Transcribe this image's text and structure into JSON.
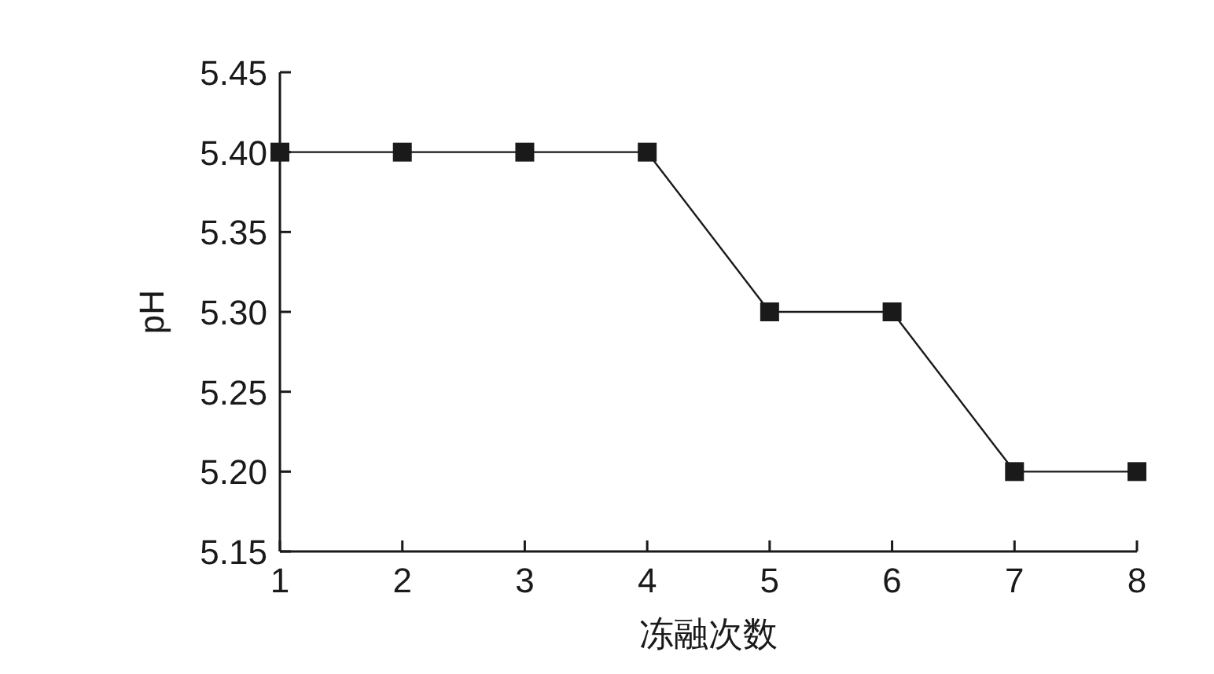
{
  "chart_data": {
    "type": "line",
    "xlabel": "冻融次数",
    "ylabel": "pH",
    "x": [
      1,
      2,
      3,
      4,
      5,
      6,
      7,
      8
    ],
    "series": [
      {
        "color": "#1a1a1a",
        "values": [
          5.4,
          5.4,
          5.4,
          5.4,
          5.3,
          5.3,
          5.2,
          5.2
        ]
      }
    ],
    "xlim": [
      1,
      8
    ],
    "xticks": [
      1,
      2,
      3,
      4,
      5,
      6,
      7,
      8
    ],
    "ylim": [
      5.15,
      5.45
    ],
    "yticks": [
      {
        "value": 5.15,
        "label": "5.15"
      },
      {
        "value": 5.2,
        "label": "5.20"
      },
      {
        "value": 5.25,
        "label": "5.25"
      },
      {
        "value": 5.3,
        "label": "5.30"
      },
      {
        "value": 5.35,
        "label": "5.35"
      },
      {
        "value": 5.4,
        "label": "5.40"
      },
      {
        "value": 5.45,
        "label": "5.45"
      }
    ],
    "marker": "square",
    "line_style": "solid"
  }
}
